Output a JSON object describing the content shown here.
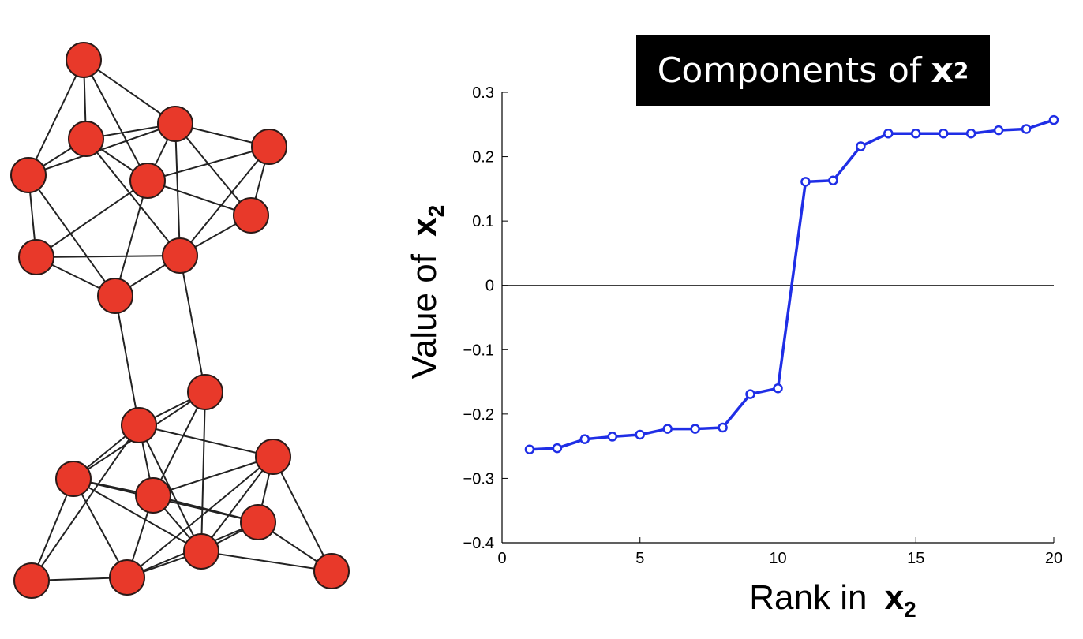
{
  "graph": {
    "node_color": "#e8392a",
    "edge_color": "#222222",
    "nodes": 20
  },
  "chart_title": {
    "text": "Components of",
    "variable": "x",
    "subscript": "2"
  },
  "chart_data": {
    "type": "line",
    "title": "Components of x2",
    "xlabel": "Rank in x2",
    "ylabel": "Value of x2",
    "xlim": [
      0,
      20
    ],
    "ylim": [
      -0.4,
      0.3
    ],
    "xticks": [
      0,
      5,
      10,
      15,
      20
    ],
    "yticks": [
      0.3,
      0.2,
      0.1,
      0,
      -0.1,
      -0.2,
      -0.3,
      -0.4
    ],
    "ytick_labels": [
      "0.3",
      "0.2",
      "0.1",
      "0",
      "−0.1",
      "−0.2",
      "−0.3",
      "−0.4"
    ],
    "series": [
      {
        "color": "#1f2ee6",
        "marker": "o",
        "x": [
          1,
          2,
          3,
          4,
          5,
          6,
          7,
          8,
          9,
          10,
          11,
          12,
          13,
          14,
          15,
          16,
          17,
          18,
          19,
          20
        ],
        "y": [
          -0.255,
          -0.253,
          -0.239,
          -0.235,
          -0.232,
          -0.223,
          -0.223,
          -0.221,
          -0.169,
          -0.16,
          0.161,
          0.163,
          0.216,
          0.236,
          0.236,
          0.236,
          0.236,
          0.241,
          0.243,
          0.257
        ]
      }
    ],
    "zero_line": true,
    "grid": false
  },
  "axis_labels": {
    "x_prefix": "Rank in",
    "y_prefix": "Value of",
    "var": "x",
    "sub": "2"
  }
}
